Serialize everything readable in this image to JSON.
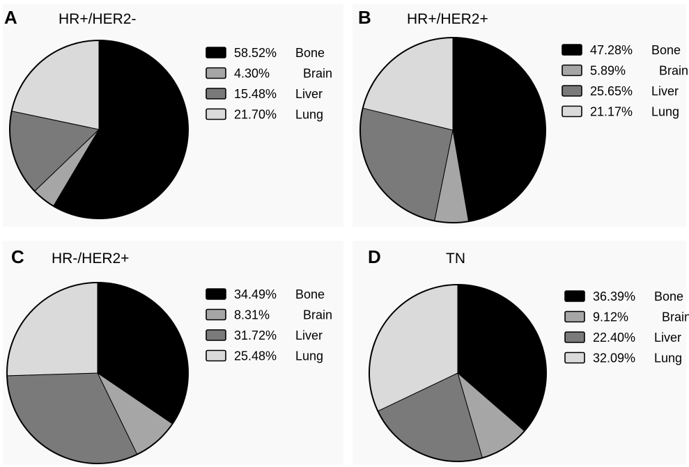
{
  "colors": {
    "Bone": "#000000",
    "Brain": "#a6a6a6",
    "Liver": "#7a7a7a",
    "Lung": "#dadada"
  },
  "chart_data": [
    {
      "type": "pie",
      "panel": "A",
      "title": "HR+/HER2-",
      "categories": [
        "Bone",
        "Brain",
        "Liver",
        "Lung"
      ],
      "values": [
        58.52,
        4.3,
        15.48,
        21.7
      ],
      "labels": [
        "58.52%",
        "4.30%",
        "15.48%",
        "21.70%"
      ],
      "legend": "right"
    },
    {
      "type": "pie",
      "panel": "B",
      "title": "HR+/HER2+",
      "categories": [
        "Bone",
        "Brain",
        "Liver",
        "Lung"
      ],
      "values": [
        47.28,
        5.89,
        25.65,
        21.17
      ],
      "labels": [
        "47.28%",
        "5.89%",
        "25.65%",
        "21.17%"
      ],
      "legend": "right"
    },
    {
      "type": "pie",
      "panel": "C",
      "title": "HR-/HER2+",
      "categories": [
        "Bone",
        "Brain",
        "Liver",
        "Lung"
      ],
      "values": [
        34.49,
        8.31,
        31.72,
        25.48
      ],
      "labels": [
        "34.49%",
        "8.31%",
        "31.72%",
        "25.48%"
      ],
      "legend": "right"
    },
    {
      "type": "pie",
      "panel": "D",
      "title": "TN",
      "categories": [
        "Bone",
        "Brain",
        "Liver",
        "Lung"
      ],
      "values": [
        36.39,
        9.12,
        22.4,
        32.09
      ],
      "labels": [
        "36.39%",
        "9.12%",
        "22.40%",
        "32.09%"
      ],
      "legend": "right"
    }
  ]
}
